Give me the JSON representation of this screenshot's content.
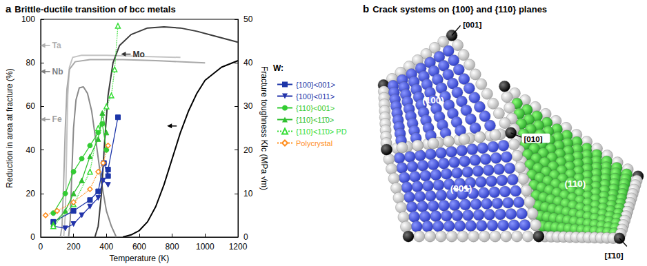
{
  "chart_data": {
    "panel": "a",
    "title": "Brittle-ductile transition of bcc metals",
    "type": "line",
    "xlabel": "Temperature (K)",
    "ylabel": "Reduction in area at fracture (%)",
    "y2label": "Fracture toughness KIc (MPa √m)",
    "xlim": [
      0,
      1200
    ],
    "xticks": [
      0,
      200,
      400,
      600,
      800,
      1000,
      1200
    ],
    "ylim": [
      0,
      100
    ],
    "yticks": [
      0,
      20,
      40,
      60,
      80,
      100
    ],
    "y2lim": [
      0,
      50
    ],
    "y2ticks": [
      0,
      10,
      20,
      30,
      40,
      50
    ],
    "grid": false,
    "legend": "right",
    "legend_title": "W:",
    "annotations": [
      {
        "text": "Ta",
        "x": 70,
        "y": 88,
        "color": "#b0b0b0"
      },
      {
        "text": "Nb",
        "x": 70,
        "y": 76,
        "color": "#808080"
      },
      {
        "text": "Fe",
        "x": 70,
        "y": 54,
        "color": "#a0a0a0"
      },
      {
        "text": "Mo",
        "x": 560,
        "y": 84,
        "color": "#333333"
      },
      {
        "x": 840,
        "y": 51,
        "color": "#000000"
      }
    ],
    "series": [
      {
        "color": "#c4c4c4",
        "marker": "none",
        "line_style": "solid",
        "x": [
          140,
          150,
          158,
          165,
          175,
          195,
          250,
          400,
          600,
          850
        ],
        "values": [
          0,
          10,
          40,
          65,
          78,
          82.5,
          83.5,
          83.5,
          83,
          82.5
        ]
      },
      {
        "color": "#8a8a8a",
        "marker": "none",
        "line_style": "solid",
        "x": [
          170,
          180,
          190,
          200,
          215,
          235,
          260,
          285,
          310,
          340,
          370,
          400,
          430,
          460
        ],
        "values": [
          0,
          8,
          30,
          50,
          63,
          68.5,
          69,
          66,
          58,
          42,
          25,
          12,
          5,
          0
        ]
      },
      {
        "color": "#a9a9a9",
        "marker": "none",
        "line_style": "solid",
        "x": [
          120,
          130,
          140,
          150,
          160,
          175,
          210,
          300,
          500,
          700,
          1000
        ],
        "values": [
          0,
          5,
          25,
          50,
          68,
          77,
          80.5,
          81.5,
          81.5,
          81,
          80
        ]
      },
      {
        "color": "#3a3a3a",
        "marker": "none",
        "line_style": "solid",
        "x": [
          330,
          350,
          370,
          390,
          410,
          440,
          480,
          550,
          650,
          750,
          850,
          950,
          1050,
          1200
        ],
        "values": [
          0,
          5,
          20,
          45,
          65,
          80,
          88,
          93,
          96,
          96.5,
          96,
          94.5,
          92.5,
          89.5
        ]
      },
      {
        "color": "#000000",
        "marker": "none",
        "line_style": "solid",
        "x": [
          500,
          550,
          600,
          650,
          700,
          750,
          800,
          850,
          900,
          950,
          1000,
          1100,
          1200
        ],
        "values": [
          0,
          1,
          3,
          7,
          14,
          24,
          36,
          48,
          58,
          66,
          72,
          78,
          81
        ]
      },
      {
        "name": "{100}<001>",
        "color": "#1c35a8",
        "marker": "square",
        "line_style": "solid",
        "axis": "y2",
        "x": [
          77,
          200,
          300,
          350,
          385,
          410,
          410,
          470
        ],
        "values": [
          3.5,
          6,
          8.5,
          10.5,
          17,
          14,
          15.5,
          27.5
        ]
      },
      {
        "name": "{100}<011>",
        "color": "#2233aa",
        "marker": "triangle-down",
        "line_style": "solid",
        "axis": "y2",
        "x": [
          77,
          150,
          200,
          250,
          300,
          350,
          380,
          410
        ],
        "values": [
          2.5,
          2,
          3,
          5,
          7,
          9,
          13,
          12
        ]
      },
      {
        "name": "{110}<001>",
        "color": "#33cc33",
        "marker": "circle",
        "line_style": "solid",
        "axis": "y2",
        "x": [
          77,
          150,
          200,
          250,
          300,
          350,
          375,
          400
        ],
        "values": [
          5.5,
          10,
          15,
          18,
          21,
          24,
          26,
          20
        ]
      },
      {
        "name": "{110}<11̄0>",
        "color": "#2fbf2f",
        "marker": "triangle",
        "line_style": "solid",
        "axis": "y2",
        "x": [
          77,
          150,
          200,
          250,
          300,
          350,
          375,
          400
        ],
        "values": [
          3,
          6,
          10,
          13,
          18.5,
          22.5,
          28.5,
          24
        ]
      },
      {
        "name": "{110}<11̄0> PD",
        "color": "#33dd33",
        "marker": "triangle-open",
        "line_style": "dotted",
        "axis": "y2",
        "x": [
          77,
          200,
          300,
          350,
          400,
          430,
          450,
          470
        ],
        "values": [
          2.5,
          7.5,
          15,
          25,
          30,
          32.5,
          38.5,
          48.5
        ]
      },
      {
        "name": "Polycrystal",
        "color": "#ff8c1a",
        "marker": "diamond-open",
        "line_style": "dotted",
        "axis": "y2",
        "x": [
          30,
          100,
          200,
          300,
          350,
          380,
          410
        ],
        "values": [
          5,
          6,
          8,
          11,
          15,
          17,
          21
        ]
      }
    ]
  },
  "diagram": {
    "panel": "b",
    "title": "Crack systems on {100} and {110} planes",
    "faces": [
      "(100)",
      "(001)",
      "(110)"
    ],
    "directions": [
      "[001]",
      "[010]",
      "[1̄10]"
    ]
  }
}
